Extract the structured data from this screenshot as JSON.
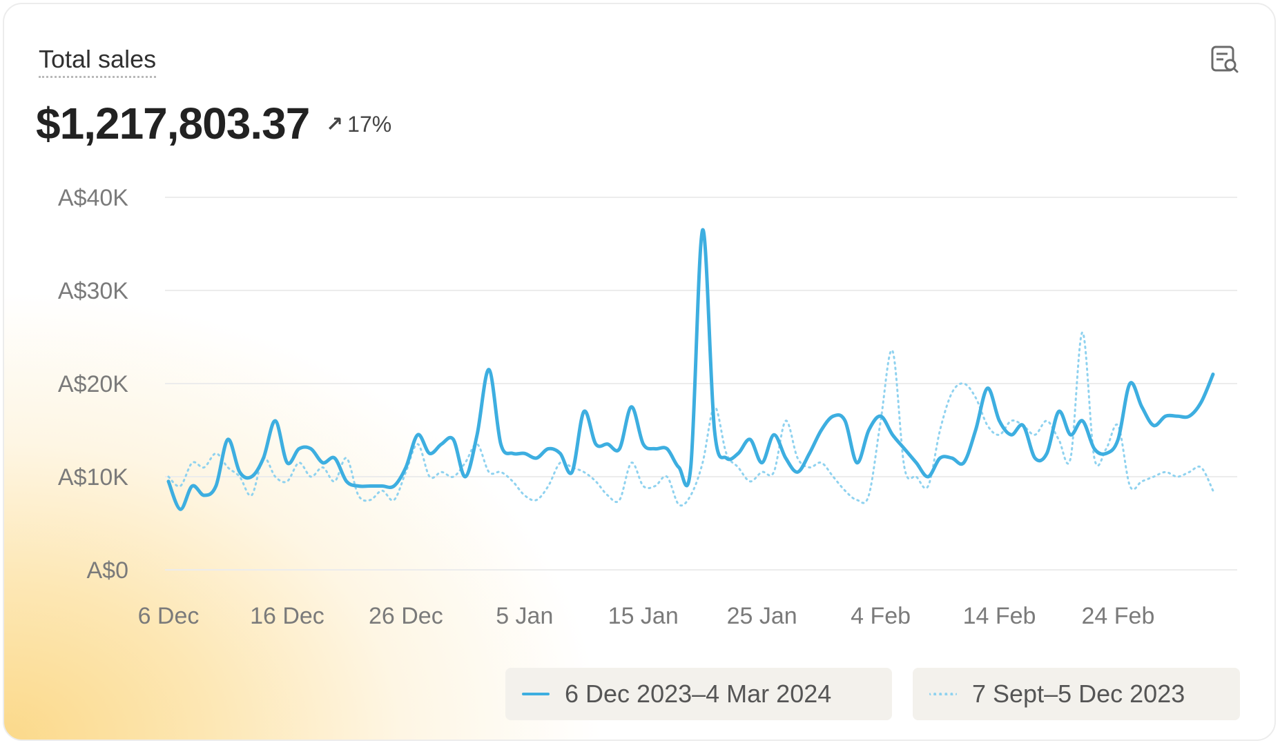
{
  "card": {
    "title": "Total sales",
    "total_value": "$1,217,803.37",
    "change": {
      "arrow": "↗",
      "value": "17%"
    },
    "icon": "chart-search-icon"
  },
  "colors": {
    "current_series": "#3daee0",
    "previous_series": "#8fd2ef",
    "grid": "#ececec",
    "axis_text": "#7a7a7a"
  },
  "legend": [
    {
      "label": "6 Dec 2023–4 Mar 2024",
      "style": "solid"
    },
    {
      "label": "7 Sept–5 Dec 2023",
      "style": "dotted"
    }
  ],
  "chart_data": {
    "type": "line",
    "title": "Total sales",
    "ylim": [
      0,
      40000
    ],
    "yticks": [
      {
        "value": 0,
        "label": "A$0"
      },
      {
        "value": 10000,
        "label": "A$10K"
      },
      {
        "value": 20000,
        "label": "A$20K"
      },
      {
        "value": 30000,
        "label": "A$30K"
      },
      {
        "value": 40000,
        "label": "A$40K"
      }
    ],
    "xticks": [
      "6 Dec",
      "16 Dec",
      "26 Dec",
      "5 Jan",
      "15 Jan",
      "25 Jan",
      "4 Feb",
      "14 Feb",
      "24 Feb"
    ],
    "xtick_every": 10,
    "grid": true,
    "legend_position": "bottom-right",
    "series": [
      {
        "name": "6 Dec 2023–4 Mar 2024",
        "style": "solid",
        "values": [
          9500,
          6500,
          9000,
          8000,
          9000,
          14000,
          10500,
          10000,
          12000,
          16000,
          11500,
          13000,
          13000,
          11500,
          12000,
          9500,
          9000,
          9000,
          9000,
          9000,
          11000,
          14500,
          12500,
          13500,
          14000,
          10000,
          14500,
          21500,
          13500,
          12500,
          12500,
          12000,
          13000,
          12500,
          10500,
          17000,
          13500,
          13500,
          13000,
          17500,
          13500,
          13000,
          13000,
          11000,
          11000,
          36500,
          15000,
          12000,
          12500,
          14000,
          11500,
          14500,
          12000,
          10500,
          12500,
          15000,
          16500,
          16000,
          11500,
          15000,
          16500,
          14500,
          13000,
          11500,
          10000,
          12000,
          12000,
          11500,
          15000,
          19500,
          16000,
          14500,
          15500,
          12000,
          12500,
          17000,
          14500,
          16000,
          13000,
          12500,
          14000,
          20000,
          17500,
          15500,
          16500,
          16500,
          16500,
          18000,
          21000
        ]
      },
      {
        "name": "7 Sept–5 Dec 2023",
        "style": "dotted",
        "values": [
          10000,
          9000,
          11500,
          11000,
          12500,
          11000,
          10000,
          8000,
          12000,
          10000,
          9500,
          11500,
          10000,
          11000,
          9500,
          12000,
          8000,
          7500,
          8500,
          7500,
          10500,
          13500,
          10000,
          10500,
          10000,
          11500,
          13500,
          10500,
          10500,
          9500,
          8000,
          7500,
          9000,
          11500,
          11000,
          10500,
          9500,
          8000,
          7500,
          11500,
          9000,
          9000,
          10000,
          7000,
          8000,
          11500,
          17500,
          12500,
          11000,
          9500,
          10500,
          10500,
          16000,
          12000,
          11000,
          11500,
          10000,
          8500,
          7500,
          8000,
          16000,
          23500,
          11000,
          10000,
          9000,
          15000,
          19000,
          20000,
          18500,
          15500,
          14500,
          16000,
          15500,
          14500,
          16000,
          14000,
          12000,
          25500,
          12000,
          13000,
          15500,
          9000,
          9500,
          10000,
          10500,
          10000,
          10500,
          11000,
          8500
        ]
      }
    ]
  }
}
